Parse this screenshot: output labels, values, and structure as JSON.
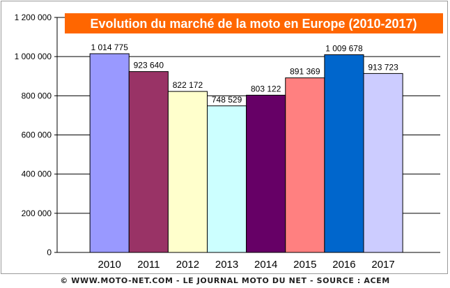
{
  "chart_data": {
    "type": "bar",
    "title": "Evolution du marché de la moto en Europe (2010-2017)",
    "categories": [
      "2010",
      "2011",
      "2012",
      "2013",
      "2014",
      "2015",
      "2016",
      "2017"
    ],
    "values": [
      1014775,
      923640,
      822172,
      748529,
      803122,
      891369,
      1009678,
      913723
    ],
    "value_labels": [
      "1 014 775",
      "923 640",
      "822 172",
      "748 529",
      "803 122",
      "891 369",
      "1 009 678",
      "913 723"
    ],
    "ylim": [
      0,
      1200000
    ],
    "yticks": [
      0,
      200000,
      400000,
      600000,
      800000,
      1000000,
      1200000
    ],
    "ytick_labels": [
      "0",
      "200 000",
      "400 000",
      "600 000",
      "800 000",
      "1 000 000",
      "1 200 000"
    ],
    "grid": true,
    "bar_colors": [
      "#9999ff",
      "#993366",
      "#ffffcc",
      "#ccffff",
      "#660066",
      "#ff8080",
      "#0066cc",
      "#ccccff"
    ],
    "title_bg": "#ff6600"
  },
  "footer": {
    "copyright_icon": "copyright-icon",
    "text": "WWW.MOTO-NET.COM - LE JOURNAL MOTO DU NET - SOURCE : ACEM"
  }
}
